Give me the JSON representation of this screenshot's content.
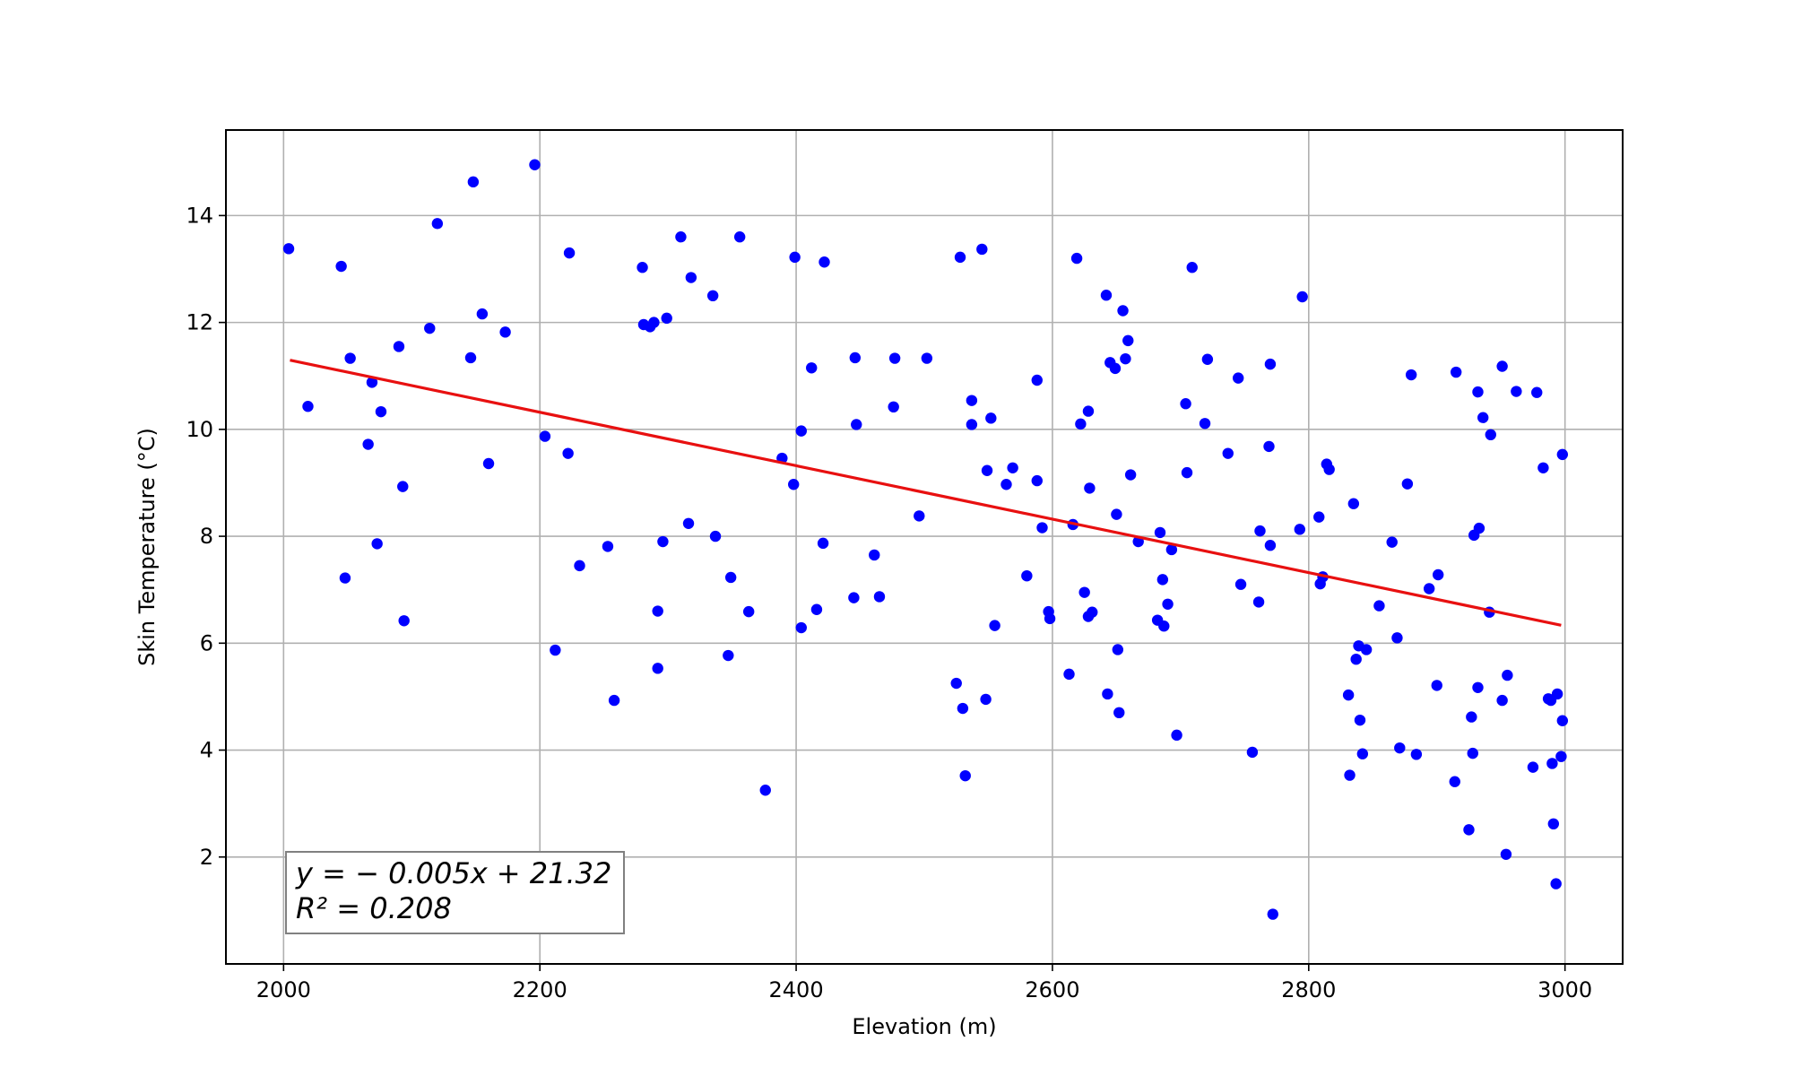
{
  "chart_data": {
    "type": "scatter",
    "xlabel": "Elevation (m)",
    "ylabel": "Skin Temperature (°C)",
    "xlim": [
      1955,
      3045
    ],
    "ylim": [
      0,
      15.6
    ],
    "xticks": [
      2000,
      2200,
      2400,
      2600,
      2800,
      3000
    ],
    "yticks": [
      2,
      4,
      6,
      8,
      10,
      12,
      14
    ],
    "grid": true,
    "colors": {
      "points": "#0000ff",
      "fit": "#e81010",
      "grid": "#b0b0b0"
    },
    "fit_line": {
      "slope": -0.005,
      "intercept": 21.32,
      "x_start": 2005,
      "x_end": 2997
    },
    "annotation": {
      "equation": "y = − 0.005x + 21.32",
      "r2": "R² = 0.208",
      "placement": "bottom-left"
    },
    "points": [
      [
        2004,
        13.38
      ],
      [
        2019,
        10.43
      ],
      [
        2045,
        13.05
      ],
      [
        2048,
        7.22
      ],
      [
        2052,
        11.33
      ],
      [
        2066,
        9.72
      ],
      [
        2069,
        10.88
      ],
      [
        2073,
        7.86
      ],
      [
        2076,
        10.33
      ],
      [
        2090,
        11.55
      ],
      [
        2093,
        8.93
      ],
      [
        2094,
        6.42
      ],
      [
        2114,
        11.89
      ],
      [
        2120,
        13.85
      ],
      [
        2146,
        11.34
      ],
      [
        2148,
        14.63
      ],
      [
        2155,
        12.16
      ],
      [
        2160,
        9.36
      ],
      [
        2173,
        11.82
      ],
      [
        2196,
        14.95
      ],
      [
        2204,
        9.87
      ],
      [
        2212,
        5.87
      ],
      [
        2222,
        9.55
      ],
      [
        2223,
        13.3
      ],
      [
        2231,
        7.45
      ],
      [
        2253,
        7.81
      ],
      [
        2258,
        4.93
      ],
      [
        2280,
        13.03
      ],
      [
        2281,
        11.96
      ],
      [
        2286,
        11.92
      ],
      [
        2289,
        12.0
      ],
      [
        2292,
        5.53
      ],
      [
        2292,
        6.6
      ],
      [
        2296,
        7.9
      ],
      [
        2299,
        12.08
      ],
      [
        2310,
        13.6
      ],
      [
        2316,
        8.24
      ],
      [
        2318,
        12.84
      ],
      [
        2335,
        12.5
      ],
      [
        2337,
        8.0
      ],
      [
        2347,
        5.77
      ],
      [
        2349,
        7.23
      ],
      [
        2356,
        13.6
      ],
      [
        2363,
        6.59
      ],
      [
        2376,
        3.25
      ],
      [
        2389,
        9.46
      ],
      [
        2398,
        8.97
      ],
      [
        2399,
        13.22
      ],
      [
        2404,
        6.29
      ],
      [
        2404,
        9.97
      ],
      [
        2412,
        11.15
      ],
      [
        2416,
        6.63
      ],
      [
        2421,
        7.87
      ],
      [
        2422,
        13.13
      ],
      [
        2445,
        6.85
      ],
      [
        2446,
        11.34
      ],
      [
        2447,
        10.09
      ],
      [
        2461,
        7.65
      ],
      [
        2465,
        6.87
      ],
      [
        2476,
        10.42
      ],
      [
        2477,
        11.33
      ],
      [
        2496,
        8.38
      ],
      [
        2502,
        11.33
      ],
      [
        2525,
        5.25
      ],
      [
        2528,
        13.22
      ],
      [
        2530,
        4.78
      ],
      [
        2532,
        3.52
      ],
      [
        2537,
        10.54
      ],
      [
        2537,
        10.09
      ],
      [
        2545,
        13.37
      ],
      [
        2548,
        4.95
      ],
      [
        2549,
        9.23
      ],
      [
        2552,
        10.21
      ],
      [
        2555,
        6.33
      ],
      [
        2564,
        8.97
      ],
      [
        2569,
        9.28
      ],
      [
        2580,
        7.26
      ],
      [
        2588,
        10.92
      ],
      [
        2588,
        9.04
      ],
      [
        2592,
        8.16
      ],
      [
        2597,
        6.59
      ],
      [
        2598,
        6.46
      ],
      [
        2613,
        5.42
      ],
      [
        2616,
        8.22
      ],
      [
        2619,
        13.2
      ],
      [
        2622,
        10.1
      ],
      [
        2625,
        6.95
      ],
      [
        2628,
        10.34
      ],
      [
        2628,
        6.5
      ],
      [
        2629,
        8.9
      ],
      [
        2631,
        6.58
      ],
      [
        2642,
        12.51
      ],
      [
        2643,
        5.05
      ],
      [
        2645,
        11.25
      ],
      [
        2649,
        11.14
      ],
      [
        2650,
        8.41
      ],
      [
        2651,
        5.88
      ],
      [
        2652,
        4.7
      ],
      [
        2655,
        12.22
      ],
      [
        2657,
        11.32
      ],
      [
        2659,
        11.66
      ],
      [
        2661,
        9.15
      ],
      [
        2667,
        7.9
      ],
      [
        2682,
        6.43
      ],
      [
        2684,
        8.07
      ],
      [
        2686,
        7.19
      ],
      [
        2687,
        6.32
      ],
      [
        2690,
        6.73
      ],
      [
        2693,
        7.75
      ],
      [
        2697,
        4.28
      ],
      [
        2704,
        10.48
      ],
      [
        2705,
        9.19
      ],
      [
        2709,
        13.03
      ],
      [
        2719,
        10.11
      ],
      [
        2721,
        11.31
      ],
      [
        2737,
        9.55
      ],
      [
        2745,
        10.96
      ],
      [
        2747,
        7.1
      ],
      [
        2756,
        3.96
      ],
      [
        2761,
        6.77
      ],
      [
        2762,
        8.1
      ],
      [
        2769,
        9.68
      ],
      [
        2770,
        11.22
      ],
      [
        2770,
        7.83
      ],
      [
        2772,
        0.93
      ],
      [
        2793,
        8.13
      ],
      [
        2795,
        12.48
      ],
      [
        2808,
        8.36
      ],
      [
        2809,
        7.11
      ],
      [
        2811,
        7.24
      ],
      [
        2814,
        9.35
      ],
      [
        2816,
        9.25
      ],
      [
        2831,
        5.03
      ],
      [
        2832,
        3.53
      ],
      [
        2835,
        8.61
      ],
      [
        2837,
        5.7
      ],
      [
        2839,
        5.95
      ],
      [
        2840,
        4.56
      ],
      [
        2842,
        3.93
      ],
      [
        2845,
        5.88
      ],
      [
        2855,
        6.7
      ],
      [
        2865,
        7.89
      ],
      [
        2869,
        6.1
      ],
      [
        2871,
        4.04
      ],
      [
        2877,
        8.98
      ],
      [
        2880,
        11.02
      ],
      [
        2884,
        3.92
      ],
      [
        2894,
        7.02
      ],
      [
        2900,
        5.21
      ],
      [
        2901,
        7.28
      ],
      [
        2914,
        3.41
      ],
      [
        2915,
        11.07
      ],
      [
        2925,
        2.51
      ],
      [
        2927,
        4.62
      ],
      [
        2928,
        3.94
      ],
      [
        2929,
        8.02
      ],
      [
        2932,
        5.17
      ],
      [
        2932,
        10.7
      ],
      [
        2933,
        8.15
      ],
      [
        2936,
        10.22
      ],
      [
        2941,
        6.58
      ],
      [
        2942,
        9.9
      ],
      [
        2951,
        4.93
      ],
      [
        2951,
        11.18
      ],
      [
        2954,
        2.05
      ],
      [
        2955,
        5.4
      ],
      [
        2962,
        10.71
      ],
      [
        2975,
        3.68
      ],
      [
        2978,
        10.69
      ],
      [
        2983,
        9.28
      ],
      [
        2987,
        4.96
      ],
      [
        2989,
        4.93
      ],
      [
        2990,
        3.75
      ],
      [
        2991,
        2.62
      ],
      [
        2993,
        1.5
      ],
      [
        2994,
        5.05
      ],
      [
        2997,
        3.88
      ],
      [
        2998,
        4.55
      ],
      [
        2998,
        9.53
      ]
    ]
  }
}
